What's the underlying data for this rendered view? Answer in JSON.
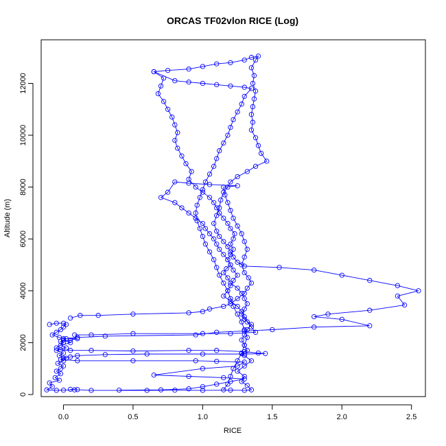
{
  "chart_data": {
    "type": "scatter",
    "title": "ORCAS TF02vlon RICE (Log)",
    "xlabel": "RICE",
    "ylabel": "Altitude (m)",
    "xlim": [
      -0.16,
      2.6
    ],
    "ylim": [
      -80,
      13680
    ],
    "x_ticks": [
      0.0,
      0.5,
      1.0,
      1.5,
      2.0,
      2.5
    ],
    "y_ticks": [
      0,
      2000,
      4000,
      6000,
      8000,
      10000,
      12000
    ],
    "x_tick_labels": [
      "0.0",
      "0.5",
      "1.0",
      "1.5",
      "2.0",
      "2.5"
    ],
    "y_tick_labels": [
      "0",
      "2000",
      "4000",
      "6000",
      "8000",
      "10000",
      "12000"
    ],
    "grid": false,
    "legend": false,
    "marker": "open-circle",
    "connected": true,
    "color": "#0000ff",
    "series": [
      {
        "points": [
          [
            0.08,
            180
          ],
          [
            0.05,
            200
          ],
          [
            0.2,
            160
          ],
          [
            0.6,
            160
          ],
          [
            0.8,
            170
          ],
          [
            1.0,
            160
          ],
          [
            1.2,
            170
          ],
          [
            1.3,
            160
          ],
          [
            1.35,
            180
          ],
          [
            1.32,
            350
          ],
          [
            1.28,
            500
          ],
          [
            1.3,
            700
          ],
          [
            1.25,
            900
          ],
          [
            1.3,
            1100
          ],
          [
            1.35,
            1300
          ],
          [
            1.3,
            1500
          ],
          [
            1.28,
            1580
          ],
          [
            1.32,
            1700
          ],
          [
            1.3,
            1900
          ],
          [
            1.28,
            2100
          ],
          [
            1.3,
            2300
          ],
          [
            1.32,
            2500
          ],
          [
            1.35,
            2700
          ],
          [
            1.3,
            2900
          ],
          [
            1.28,
            3100
          ],
          [
            1.3,
            3300
          ],
          [
            1.32,
            3500
          ],
          [
            1.3,
            3700
          ],
          [
            1.28,
            3900
          ],
          [
            1.25,
            4100
          ],
          [
            1.2,
            4300
          ],
          [
            1.18,
            4500
          ],
          [
            1.15,
            4700
          ],
          [
            1.17,
            4850
          ],
          [
            1.2,
            5000
          ],
          [
            1.18,
            5200
          ],
          [
            1.2,
            5400
          ],
          [
            1.22,
            5600
          ],
          [
            1.2,
            5800
          ],
          [
            1.22,
            6000
          ],
          [
            1.23,
            6200
          ],
          [
            1.2,
            6400
          ],
          [
            1.18,
            6600
          ],
          [
            1.15,
            6800
          ],
          [
            1.12,
            7000
          ],
          [
            1.1,
            7200
          ],
          [
            1.08,
            7400
          ],
          [
            1.05,
            7600
          ],
          [
            1.0,
            7800
          ],
          [
            0.95,
            8000
          ],
          [
            0.9,
            8300
          ],
          [
            0.92,
            8600
          ],
          [
            0.88,
            8900
          ],
          [
            0.85,
            9200
          ],
          [
            0.82,
            9500
          ],
          [
            0.8,
            9800
          ],
          [
            0.82,
            10100
          ],
          [
            0.8,
            10400
          ],
          [
            0.78,
            10700
          ],
          [
            0.75,
            11000
          ],
          [
            0.72,
            11300
          ],
          [
            0.68,
            11600
          ],
          [
            0.7,
            11900
          ],
          [
            0.72,
            12200
          ],
          [
            0.65,
            12450
          ],
          [
            0.75,
            12500
          ],
          [
            0.9,
            12550
          ],
          [
            1.0,
            12650
          ],
          [
            1.1,
            12750
          ],
          [
            1.2,
            12800
          ],
          [
            1.3,
            12900
          ],
          [
            1.35,
            13000
          ],
          [
            1.4,
            13050
          ],
          [
            1.38,
            12900
          ],
          [
            1.35,
            12600
          ],
          [
            1.37,
            12300
          ],
          [
            1.36,
            12000
          ],
          [
            1.38,
            11700
          ],
          [
            1.37,
            11400
          ],
          [
            1.36,
            11100
          ],
          [
            1.35,
            10800
          ],
          [
            1.36,
            10500
          ],
          [
            1.35,
            10200
          ],
          [
            1.38,
            9900
          ],
          [
            1.4,
            9600
          ],
          [
            1.42,
            9300
          ],
          [
            1.46,
            9000
          ],
          [
            1.38,
            8800
          ],
          [
            1.32,
            8600
          ],
          [
            1.25,
            8400
          ],
          [
            1.2,
            8200
          ],
          [
            1.18,
            8000
          ],
          [
            1.15,
            7800
          ],
          [
            1.13,
            7500
          ],
          [
            1.12,
            7200
          ],
          [
            1.1,
            6900
          ],
          [
            1.08,
            6600
          ],
          [
            1.1,
            6300
          ],
          [
            1.12,
            6100
          ],
          [
            1.15,
            5900
          ],
          [
            1.18,
            5700
          ],
          [
            1.2,
            5500
          ],
          [
            1.22,
            5300
          ],
          [
            1.25,
            5100
          ],
          [
            1.3,
            4950
          ],
          [
            1.55,
            4900
          ],
          [
            1.8,
            4800
          ],
          [
            2.0,
            4600
          ],
          [
            2.2,
            4400
          ],
          [
            2.4,
            4200
          ],
          [
            2.55,
            4000
          ],
          [
            2.4,
            3800
          ],
          [
            2.45,
            3450
          ],
          [
            2.2,
            3250
          ],
          [
            1.9,
            3100
          ],
          [
            1.8,
            3000
          ],
          [
            2.0,
            2900
          ],
          [
            2.2,
            2650
          ],
          [
            1.8,
            2600
          ],
          [
            1.5,
            2500
          ],
          [
            1.3,
            2450
          ],
          [
            1.1,
            2400
          ],
          [
            0.95,
            2300
          ],
          [
            0.3,
            2250
          ],
          [
            0.1,
            2200
          ],
          [
            0.02,
            2150
          ],
          [
            0.0,
            2100
          ],
          [
            0.05,
            2000
          ],
          [
            -0.02,
            1900
          ],
          [
            0.02,
            1800
          ],
          [
            -0.05,
            1700
          ],
          [
            0.0,
            1600
          ],
          [
            -0.03,
            1500
          ],
          [
            0.02,
            1400
          ],
          [
            0.0,
            1300
          ],
          [
            -0.04,
            1200
          ],
          [
            0.0,
            1100
          ],
          [
            -0.02,
            1000
          ],
          [
            -0.05,
            900
          ],
          [
            -0.02,
            800
          ],
          [
            -0.06,
            650
          ],
          [
            -0.03,
            550
          ],
          [
            -0.1,
            450
          ],
          [
            -0.08,
            300
          ],
          [
            -0.12,
            180
          ],
          [
            -0.05,
            160
          ],
          [
            0.0,
            170
          ],
          [
            0.1,
            190
          ]
        ]
      },
      {
        "points": [
          [
            -0.1,
            2700
          ],
          [
            -0.05,
            2750
          ],
          [
            0.0,
            2750
          ],
          [
            0.02,
            2700
          ],
          [
            0.0,
            2600
          ],
          [
            -0.02,
            2500
          ],
          [
            -0.05,
            2400
          ],
          [
            -0.08,
            2300
          ],
          [
            -0.03,
            2200
          ],
          [
            0.0,
            2150
          ],
          [
            0.1,
            2150
          ],
          [
            0.05,
            2100
          ],
          [
            -0.02,
            2050
          ],
          [
            0.0,
            2000
          ],
          [
            -0.05,
            1800
          ],
          [
            -0.02,
            1720
          ],
          [
            0.05,
            1700
          ],
          [
            0.2,
            1700
          ],
          [
            0.5,
            1680
          ],
          [
            0.9,
            1700
          ],
          [
            1.1,
            1700
          ],
          [
            1.3,
            1650
          ],
          [
            1.4,
            1600
          ],
          [
            1.45,
            1580
          ],
          [
            1.3,
            1560
          ],
          [
            1.0,
            1560
          ],
          [
            0.6,
            1560
          ],
          [
            0.3,
            1540
          ],
          [
            0.1,
            1500
          ],
          [
            0.05,
            1450
          ],
          [
            0.0,
            1400
          ],
          [
            -0.02,
            1350
          ],
          [
            0.1,
            1300
          ],
          [
            0.5,
            1300
          ],
          [
            0.95,
            1300
          ],
          [
            1.1,
            1280
          ],
          [
            1.3,
            1250
          ],
          [
            1.25,
            1100
          ],
          [
            1.0,
            1000
          ],
          [
            0.65,
            750
          ],
          [
            0.9,
            700
          ],
          [
            1.15,
            650
          ],
          [
            1.3,
            600
          ],
          [
            1.2,
            500
          ],
          [
            1.1,
            400
          ],
          [
            1.0,
            300
          ],
          [
            0.9,
            220
          ],
          [
            0.7,
            180
          ],
          [
            0.4,
            170
          ]
        ]
      },
      {
        "points": [
          [
            0.05,
            2950
          ],
          [
            0.12,
            3050
          ],
          [
            0.25,
            3050
          ],
          [
            0.5,
            3100
          ],
          [
            0.9,
            3150
          ],
          [
            1.0,
            3200
          ],
          [
            1.05,
            3300
          ],
          [
            1.15,
            3400
          ],
          [
            1.2,
            3500
          ],
          [
            1.25,
            3700
          ],
          [
            1.3,
            3900
          ],
          [
            1.32,
            4100
          ],
          [
            1.35,
            4300
          ],
          [
            1.33,
            4500
          ],
          [
            1.3,
            4700
          ],
          [
            1.28,
            5000
          ],
          [
            1.3,
            5300
          ],
          [
            1.32,
            5600
          ],
          [
            1.3,
            5900
          ],
          [
            1.28,
            6200
          ],
          [
            1.25,
            6500
          ],
          [
            1.22,
            6800
          ],
          [
            1.2,
            7100
          ],
          [
            1.18,
            7400
          ],
          [
            1.16,
            7700
          ],
          [
            1.15,
            8000
          ],
          [
            1.25,
            8050
          ],
          [
            1.05,
            8100
          ],
          [
            0.9,
            8150
          ],
          [
            0.8,
            8200
          ],
          [
            0.75,
            7800
          ],
          [
            0.7,
            7600
          ],
          [
            0.8,
            7400
          ],
          [
            0.85,
            7200
          ],
          [
            0.9,
            7000
          ],
          [
            0.95,
            6800
          ],
          [
            1.0,
            6600
          ],
          [
            1.02,
            6400
          ],
          [
            1.05,
            6200
          ],
          [
            1.08,
            6000
          ],
          [
            1.1,
            5800
          ],
          [
            1.12,
            5600
          ],
          [
            1.15,
            5400
          ],
          [
            1.18,
            5200
          ],
          [
            1.2,
            5000
          ],
          [
            1.22,
            4800
          ],
          [
            1.25,
            4600
          ],
          [
            1.22,
            4400
          ],
          [
            1.2,
            4200
          ],
          [
            1.18,
            4000
          ],
          [
            1.15,
            3800
          ],
          [
            1.2,
            3600
          ],
          [
            1.25,
            3400
          ],
          [
            1.28,
            3200
          ],
          [
            1.3,
            3000
          ],
          [
            1.32,
            2800
          ],
          [
            1.35,
            2600
          ],
          [
            1.38,
            2400
          ],
          [
            1.2,
            2350
          ],
          [
            1.0,
            2350
          ],
          [
            0.5,
            2350
          ],
          [
            0.2,
            2300
          ],
          [
            0.08,
            2300
          ]
        ]
      },
      {
        "points": [
          [
            0.65,
            12450
          ],
          [
            0.8,
            12100
          ],
          [
            0.9,
            12050
          ],
          [
            1.0,
            12000
          ],
          [
            1.1,
            11950
          ],
          [
            1.2,
            11900
          ],
          [
            1.3,
            11850
          ],
          [
            1.35,
            11800
          ],
          [
            1.3,
            11500
          ],
          [
            1.28,
            11200
          ],
          [
            1.25,
            10900
          ],
          [
            1.22,
            10600
          ],
          [
            1.2,
            10300
          ],
          [
            1.18,
            10000
          ],
          [
            1.15,
            9700
          ],
          [
            1.12,
            9400
          ],
          [
            1.1,
            9100
          ],
          [
            1.08,
            8800
          ],
          [
            1.05,
            8500
          ],
          [
            1.02,
            8200
          ],
          [
            1.0,
            7900
          ],
          [
            0.98,
            7600
          ],
          [
            0.96,
            7300
          ],
          [
            0.95,
            7000
          ],
          [
            0.96,
            6700
          ],
          [
            0.98,
            6400
          ],
          [
            1.0,
            6100
          ],
          [
            1.02,
            5800
          ],
          [
            1.05,
            5500
          ],
          [
            1.08,
            5200
          ],
          [
            1.1,
            4900
          ],
          [
            1.12,
            4600
          ],
          [
            1.15,
            4300
          ],
          [
            1.18,
            4000
          ],
          [
            1.2,
            3700
          ],
          [
            1.22,
            3400
          ],
          [
            1.25,
            3100
          ],
          [
            1.28,
            2800
          ],
          [
            1.3,
            2500
          ],
          [
            1.32,
            2200
          ],
          [
            1.3,
            1900
          ],
          [
            1.28,
            1600
          ],
          [
            1.25,
            1300
          ],
          [
            1.22,
            1000
          ],
          [
            1.2,
            700
          ],
          [
            1.18,
            400
          ],
          [
            1.15,
            180
          ]
        ]
      }
    ]
  }
}
